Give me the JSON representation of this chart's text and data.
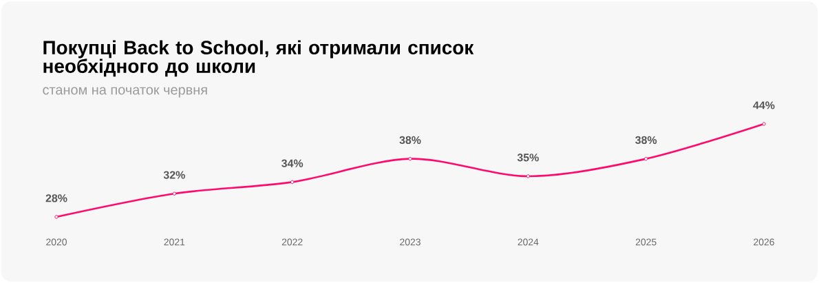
{
  "chart_data": {
    "type": "line",
    "title": "Покупці Back to School, які отримали список необхідного до школи",
    "subtitle": "станом на початок червня",
    "categories": [
      "2020",
      "2021",
      "2022",
      "2023",
      "2024",
      "2025",
      "2026"
    ],
    "series": [
      {
        "color": "#ff0a6c",
        "values": [
          28,
          32,
          34,
          38,
          35,
          38,
          44
        ],
        "value_labels": [
          "28%",
          "32%",
          "34%",
          "38%",
          "35%",
          "38%",
          "44%"
        ]
      }
    ],
    "marker": "circle",
    "line_style": "solid",
    "tick_labels": "x"
  }
}
